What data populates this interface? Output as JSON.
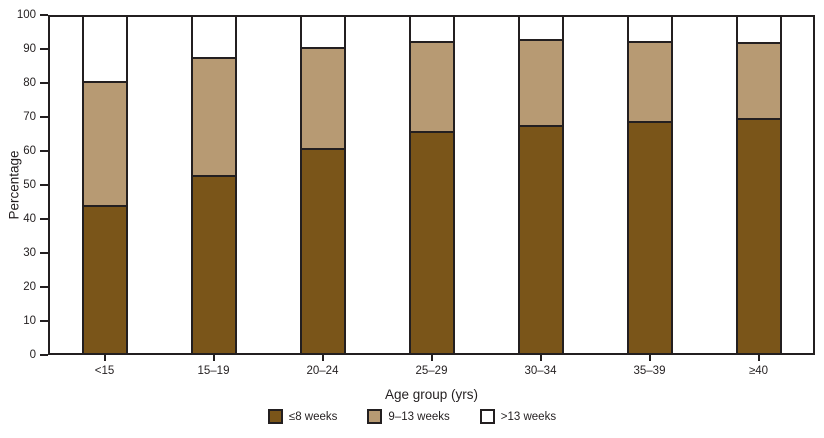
{
  "chart_data": {
    "type": "bar",
    "stacked": true,
    "title": "",
    "xlabel": "Age group (yrs)",
    "ylabel": "Percentage",
    "ylim": [
      0,
      100
    ],
    "yticks": [
      0,
      10,
      20,
      30,
      40,
      50,
      60,
      70,
      80,
      90,
      100
    ],
    "grid": false,
    "legend_position": "bottom",
    "categories": [
      "<15",
      "15–19",
      "20–24",
      "25–29",
      "30–34",
      "35–39",
      "≥40"
    ],
    "series": [
      {
        "name": "≤8 weeks",
        "color": "#7a5519",
        "values": [
          44,
          53,
          61,
          66,
          68,
          69,
          70
        ]
      },
      {
        "name": "9–13 weeks",
        "color": "#b79a73",
        "values": [
          37,
          35,
          30,
          27,
          25.5,
          24,
          22.5
        ]
      },
      {
        "name": ">13 weeks",
        "color": "#ffffff",
        "values": [
          19,
          12,
          9,
          7,
          6.5,
          7,
          7.5
        ]
      }
    ]
  },
  "colors": {
    "axis": "#231f20",
    "text": "#231f20",
    "plot_background": "#ffffff"
  }
}
